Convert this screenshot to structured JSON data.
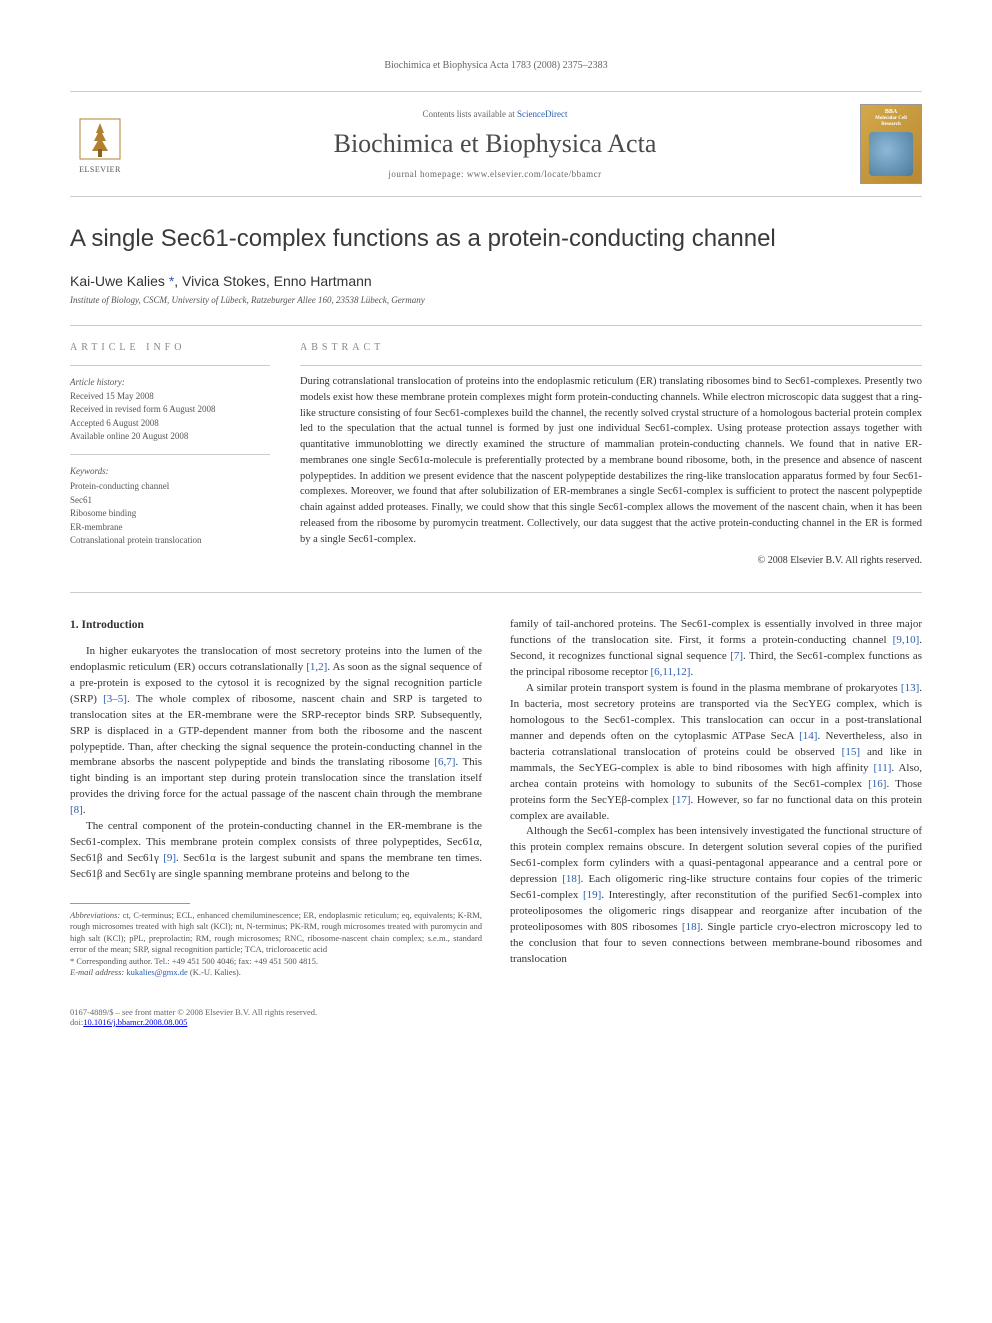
{
  "running_header": "Biochimica et Biophysica Acta 1783 (2008) 2375–2383",
  "masthead": {
    "contents_prefix": "Contents lists available at ",
    "contents_link": "ScienceDirect",
    "journal_name": "Biochimica et Biophysica Acta",
    "homepage_prefix": "journal homepage: ",
    "homepage_url": "www.elsevier.com/locate/bbamcr",
    "publisher_name": "ELSEVIER",
    "cover_line1": "BBA",
    "cover_line2": "Molecular Cell Research"
  },
  "article": {
    "title": "A single Sec61-complex functions as a protein-conducting channel",
    "authors_html": "Kai-Uwe Kalies *, Vivica Stokes, Enno Hartmann",
    "author1": "Kai-Uwe Kalies ",
    "author_corr": "*",
    "author_rest": ", Vivica Stokes, Enno Hartmann",
    "affiliation": "Institute of Biology, CSCM, University of Lübeck, Ratzeburger Allee 160, 23538 Lübeck, Germany"
  },
  "article_info": {
    "label": "article info",
    "history_label": "Article history:",
    "received": "Received 15 May 2008",
    "revised": "Received in revised form 6 August 2008",
    "accepted": "Accepted 6 August 2008",
    "online": "Available online 20 August 2008",
    "keywords_label": "Keywords:",
    "keywords": [
      "Protein-conducting channel",
      "Sec61",
      "Ribosome binding",
      "ER-membrane",
      "Cotranslational protein translocation"
    ]
  },
  "abstract": {
    "label": "abstract",
    "text": "During cotranslational translocation of proteins into the endoplasmic reticulum (ER) translating ribosomes bind to Sec61-complexes. Presently two models exist how these membrane protein complexes might form protein-conducting channels. While electron microscopic data suggest that a ring-like structure consisting of four Sec61-complexes build the channel, the recently solved crystal structure of a homologous bacterial protein complex led to the speculation that the actual tunnel is formed by just one individual Sec61-complex. Using protease protection assays together with quantitative immunoblotting we directly examined the structure of mammalian protein-conducting channels. We found that in native ER-membranes one single Sec61α-molecule is preferentially protected by a membrane bound ribosome, both, in the presence and absence of nascent polypeptides. In addition we present evidence that the nascent polypeptide destabilizes the ring-like translocation apparatus formed by four Sec61-complexes. Moreover, we found that after solubilization of ER-membranes a single Sec61-complex is sufficient to protect the nascent polypeptide chain against added proteases. Finally, we could show that this single Sec61-complex allows the movement of the nascent chain, when it has been released from the ribosome by puromycin treatment. Collectively, our data suggest that the active protein-conducting channel in the ER is formed by a single Sec61-complex.",
    "copyright": "© 2008 Elsevier B.V. All rights reserved."
  },
  "body": {
    "heading": "1. Introduction",
    "col1_p1": "In higher eukaryotes the translocation of most secretory proteins into the lumen of the endoplasmic reticulum (ER) occurs cotranslationally [1,2]. As soon as the signal sequence of a pre-protein is exposed to the cytosol it is recognized by the signal recognition particle (SRP) [3–5]. The whole complex of ribosome, nascent chain and SRP is targeted to translocation sites at the ER-membrane were the SRP-receptor binds SRP. Subsequently, SRP is displaced in a GTP-dependent manner from both the ribosome and the nascent polypeptide. Than, after checking the signal sequence the protein-conducting channel in the membrane absorbs the nascent polypeptide and binds the translating ribosome [6,7]. This tight binding is an important step during protein translocation since the translation itself provides the driving force for the actual passage of the nascent chain through the membrane [8].",
    "col1_p2": "The central component of the protein-conducting channel in the ER-membrane is the Sec61-complex. This membrane protein complex consists of three polypeptides, Sec61α, Sec61β and Sec61γ [9]. Sec61α is the largest subunit and spans the membrane ten times. Sec61β and Sec61γ are single spanning membrane proteins and belong to the",
    "col2_p1": "family of tail-anchored proteins. The Sec61-complex is essentially involved in three major functions of the translocation site. First, it forms a protein-conducting channel [9,10]. Second, it recognizes functional signal sequence [7]. Third, the Sec61-complex functions as the principal ribosome receptor [6,11,12].",
    "col2_p2": "A similar protein transport system is found in the plasma membrane of prokaryotes [13]. In bacteria, most secretory proteins are transported via the SecYEG complex, which is homologous to the Sec61-complex. This translocation can occur in a post-translational manner and depends often on the cytoplasmic ATPase SecA [14]. Nevertheless, also in bacteria cotranslational translocation of proteins could be observed [15] and like in mammals, the SecYEG-complex is able to bind ribosomes with high affinity [11]. Also, archea contain proteins with homology to subunits of the Sec61-complex [16]. Those proteins form the SecYEβ-complex [17]. However, so far no functional data on this protein complex are available.",
    "col2_p3": "Although the Sec61-complex has been intensively investigated the functional structure of this protein complex remains obscure. In detergent solution several copies of the purified Sec61-complex form cylinders with a quasi-pentagonal appearance and a central pore or depression [18]. Each oligomeric ring-like structure contains four copies of the trimeric Sec61-complex [19]. Interestingly, after reconstitution of the purified Sec61-complex into proteoliposomes the oligomeric rings disappear and reorganize after incubation of the proteoliposomes with 80S ribosomes [18]. Single particle cryo-electron microscopy led to the conclusion that four to seven connections between membrane-bound ribosomes and translocation"
  },
  "footnotes": {
    "abbrev_label": "Abbreviations:",
    "abbrev_text": " ct, C-terminus; ECL, enhanced chemiluminescence; ER, endoplasmic reticulum; eq, equivalents; K-RM, rough microsomes treated with high salt (KCl); nt, N-terminus; PK-RM, rough microsomes treated with puromycin and high salt (KCl); pPL, preprolactin; RM, rough microsomes; RNC, ribosome-nascent chain complex; s.e.m., standard error of the mean; SRP, signal recognition particle; TCA, tricloroacetic acid",
    "corresponding": "* Corresponding author. Tel.: +49 451 500 4046; fax: +49 451 500 4815.",
    "email_label": "E-mail address: ",
    "email": "kukalies@gmx.de",
    "email_suffix": " (K.-U. Kalies)."
  },
  "footer": {
    "line1": "0167-4889/$ – see front matter © 2008 Elsevier B.V. All rights reserved.",
    "line2_prefix": "doi:",
    "doi": "10.1016/j.bbamcr.2008.08.005"
  },
  "refs": {
    "r12": "[1,2]",
    "r35": "[3–5]",
    "r67": "[6,7]",
    "r8": "[8]",
    "r9": "[9]",
    "r910": "[9,10]",
    "r7": "[7]",
    "r61112": "[6,11,12]",
    "r13": "[13]",
    "r14": "[14]",
    "r15": "[15]",
    "r11": "[11]",
    "r16": "[16]",
    "r17": "[17]",
    "r18": "[18]",
    "r19": "[19]",
    "r18b": "[18]"
  },
  "colors": {
    "link": "#2a5db0",
    "text": "#333333",
    "muted": "#666666",
    "divider": "#cccccc"
  }
}
